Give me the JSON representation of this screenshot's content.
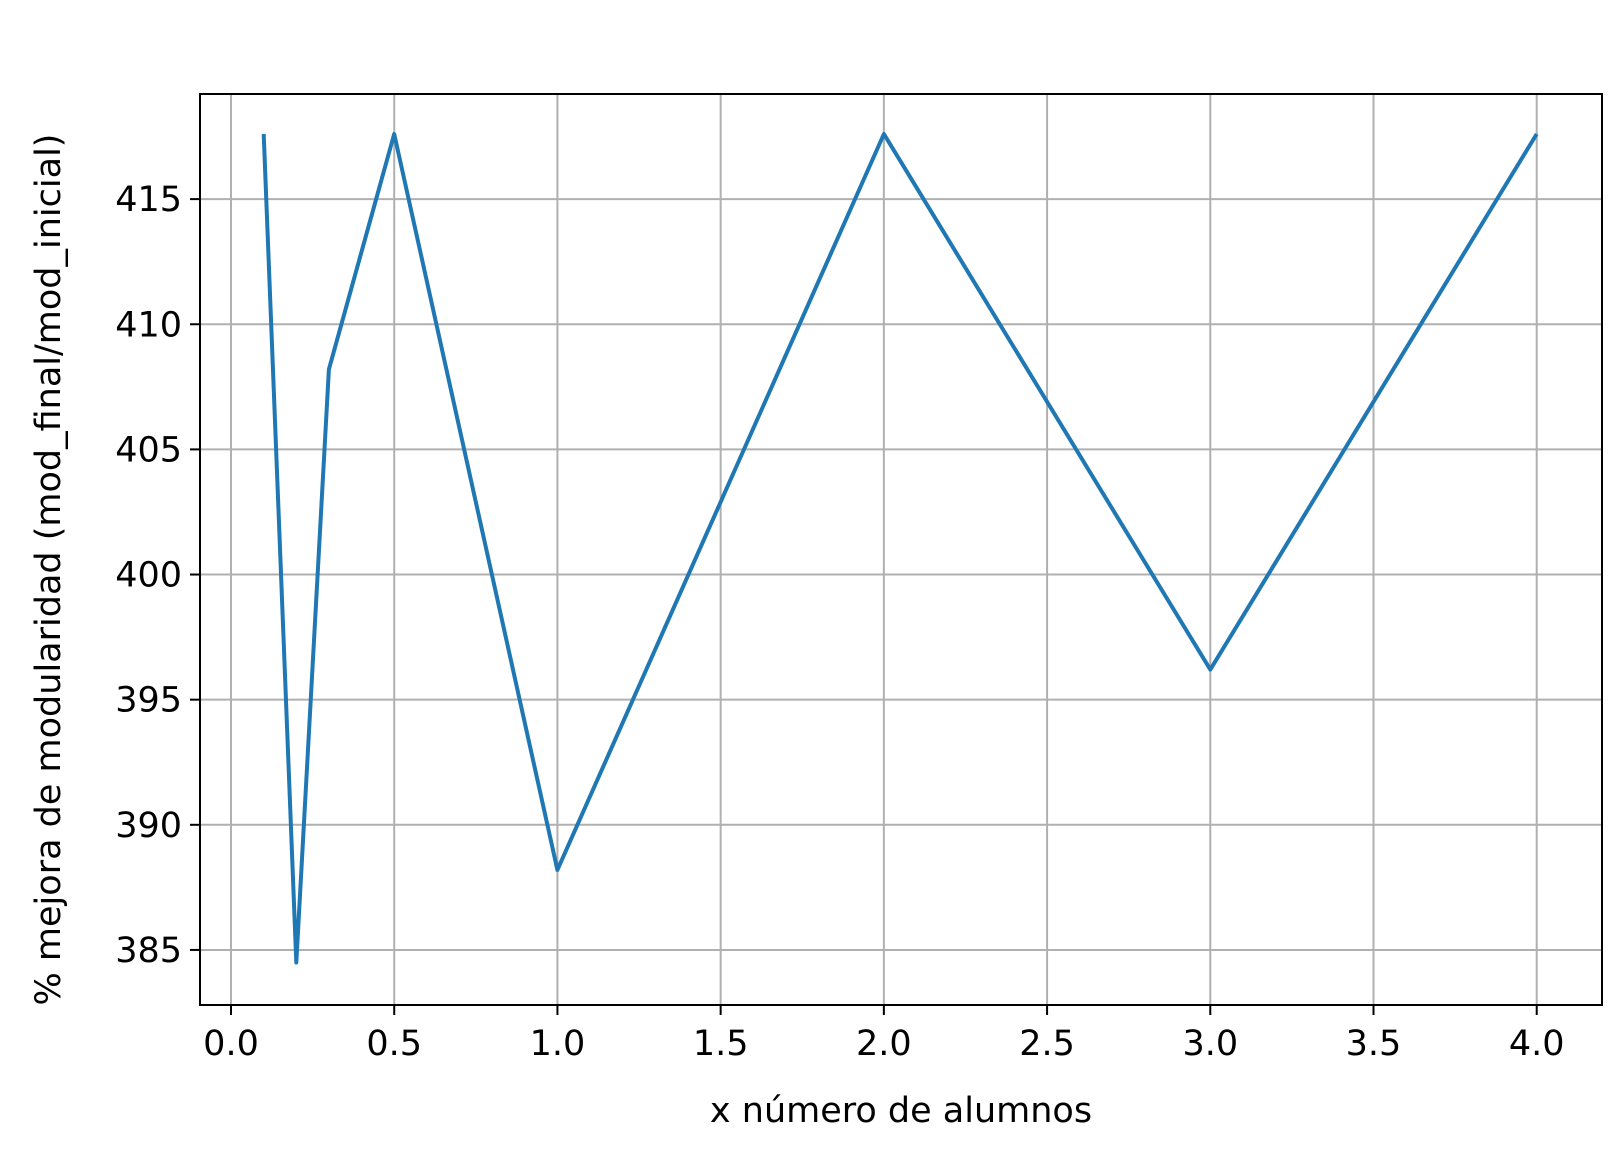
{
  "chart_data": {
    "type": "line",
    "title": "",
    "xlabel": "x número de alumnos",
    "ylabel": "% mejora de modularidad (mod_final/mod_inicial)",
    "xlim": [
      -0.095,
      4.2
    ],
    "ylim": [
      382.8,
      419.2
    ],
    "xticks": [
      0.0,
      0.5,
      1.0,
      1.5,
      2.0,
      2.5,
      3.0,
      3.5,
      4.0
    ],
    "xtick_labels": [
      "0.0",
      "0.5",
      "1.0",
      "1.5",
      "2.0",
      "2.5",
      "3.0",
      "3.5",
      "4.0"
    ],
    "yticks": [
      385,
      390,
      395,
      400,
      405,
      410,
      415
    ],
    "ytick_labels": [
      "385",
      "390",
      "395",
      "400",
      "405",
      "410",
      "415"
    ],
    "grid": true,
    "series": [
      {
        "color": "#1f77b4",
        "x": [
          0.1,
          0.2,
          0.3,
          0.5,
          1.0,
          2.0,
          3.0,
          4.0
        ],
        "y": [
          417.6,
          384.5,
          408.2,
          417.6,
          388.2,
          417.6,
          396.2,
          417.6
        ]
      }
    ]
  }
}
